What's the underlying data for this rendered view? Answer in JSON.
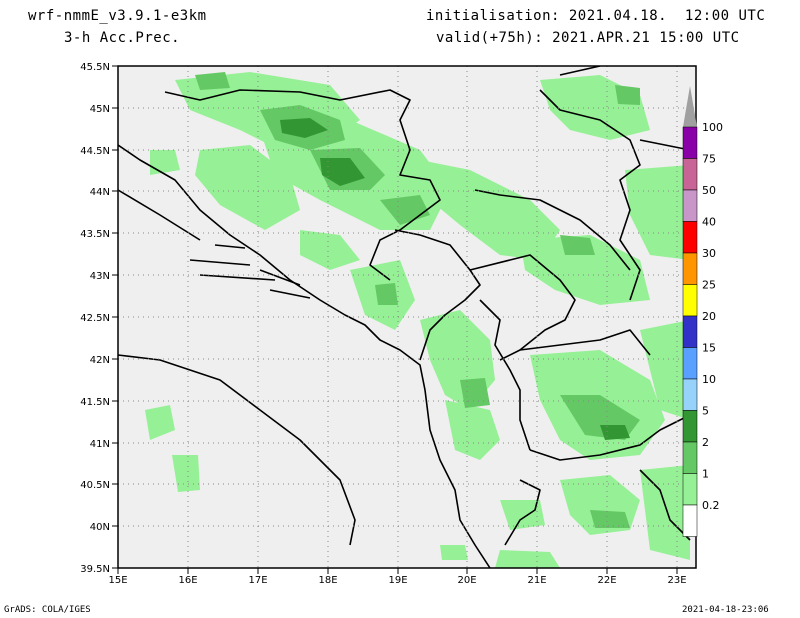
{
  "header": {
    "model": "wrf-nmmE_v3.9.1-e3km",
    "field": "3-h Acc.Prec.",
    "init": "initialisation: 2021.04.18.  12:00 UTC",
    "valid": "valid(+75h): 2021.APR.21 15:00 UTC"
  },
  "footer": {
    "credit": "GrADS: COLA/IGES",
    "timestamp": "2021-04-18-23:06"
  },
  "map": {
    "lon_labels": [
      "15E",
      "16E",
      "17E",
      "18E",
      "19E",
      "20E",
      "21E",
      "22E",
      "23E"
    ],
    "lat_labels": [
      "45.5N",
      "45N",
      "44.5N",
      "44N",
      "43.5N",
      "43N",
      "42.5N",
      "42N",
      "41.5N",
      "41N",
      "40.5N",
      "40N",
      "39.5N"
    ],
    "lon_range": [
      15,
      23.3
    ],
    "lat_range": [
      39.5,
      45.5
    ],
    "background": "#efefef",
    "grid": true
  },
  "legend": {
    "labels": [
      "100",
      "75",
      "50",
      "40",
      "30",
      "25",
      "20",
      "15",
      "10",
      "5",
      "2",
      "1",
      "0.2"
    ],
    "colors": [
      "#a0a0a0",
      "#8a00a8",
      "#c86496",
      "#c896c8",
      "#ff0000",
      "#ff9600",
      "#ffff00",
      "#3232c8",
      "#5aa0ff",
      "#96d2fa",
      "#329632",
      "#64c864",
      "#96f096",
      "#ffffff"
    ]
  }
}
